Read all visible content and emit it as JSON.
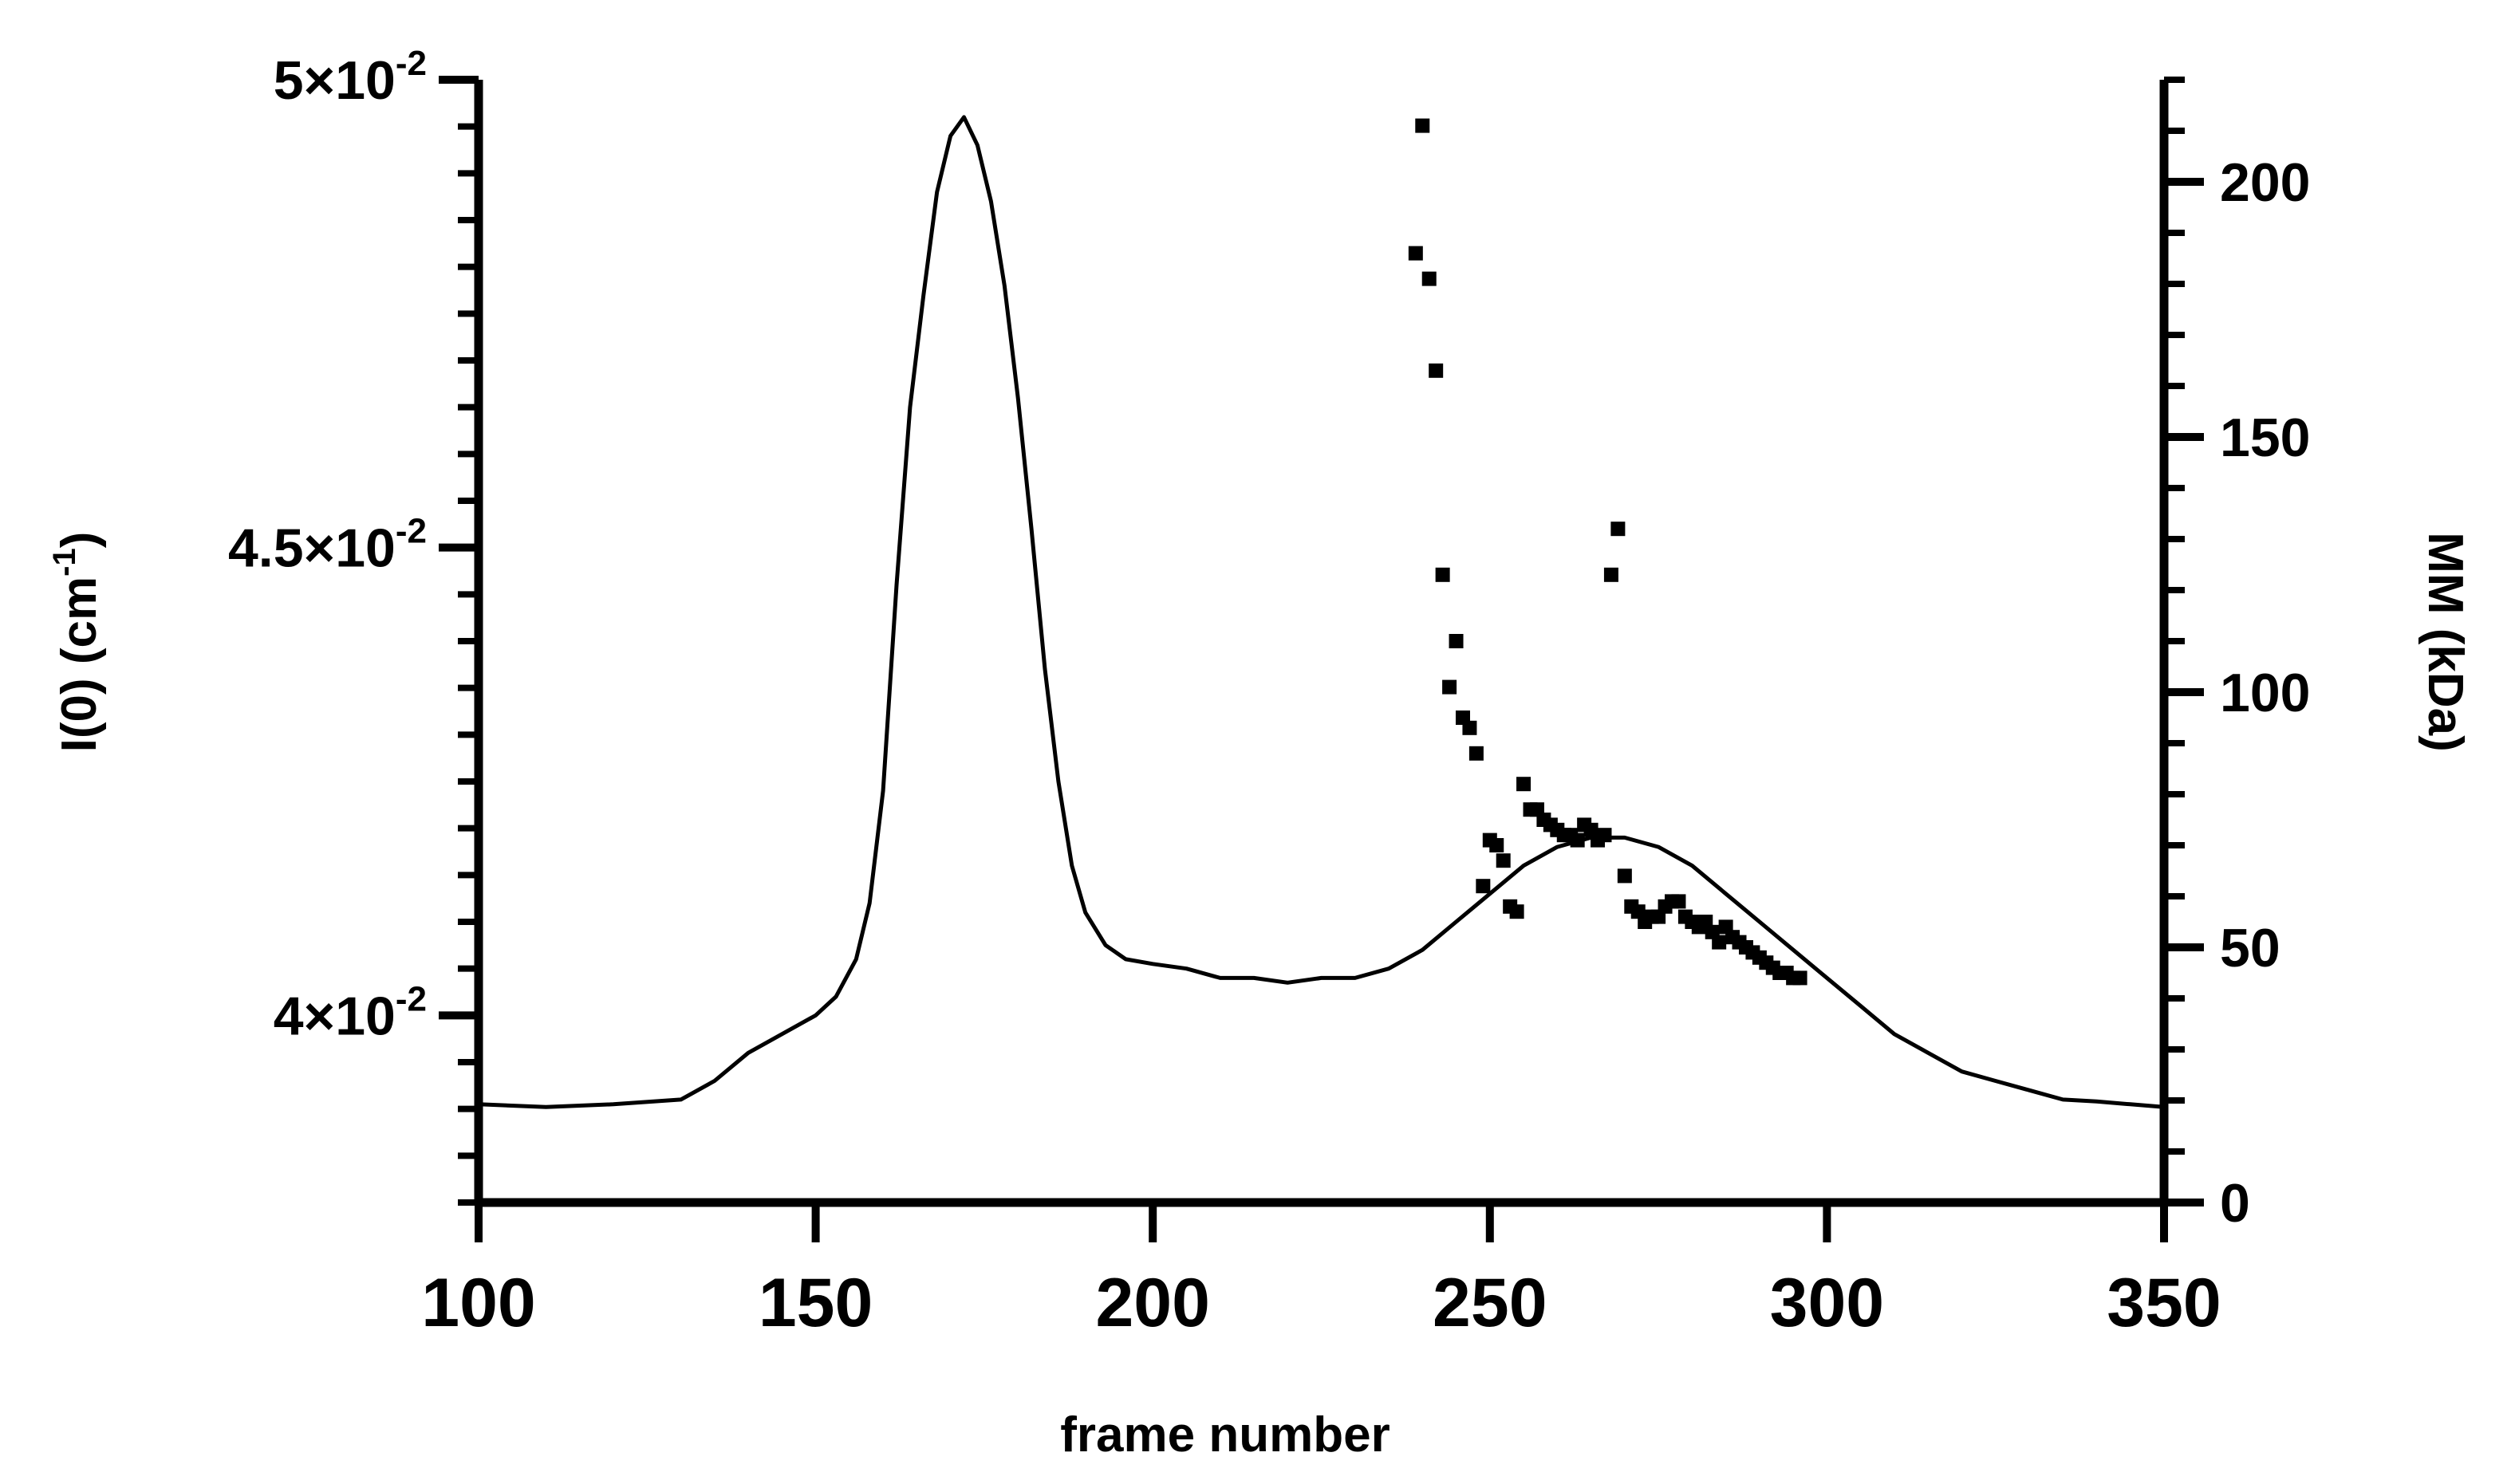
{
  "chart_data": {
    "type": "line",
    "title": "",
    "xlabel": "frame number",
    "ylabel_left": "I(0) (cm",
    "ylabel_left_exp": "-1",
    "ylabel_left_close": ")",
    "ylabel_right": "MM (kDa)",
    "xlim": [
      100,
      350
    ],
    "ylim_left": [
      0.038,
      0.05
    ],
    "ylim_right": [
      0,
      220
    ],
    "x_ticks": [
      "100",
      "150",
      "200",
      "250",
      "300",
      "350"
    ],
    "x_tick_values": [
      100,
      150,
      200,
      250,
      300,
      350
    ],
    "y_left_ticks": [
      {
        "value": 0.05,
        "mantissa": "5×10",
        "exp": "-2"
      },
      {
        "value": 0.045,
        "mantissa": "4.5×10",
        "exp": "-2"
      },
      {
        "value": 0.04,
        "mantissa": "4×10",
        "exp": "-2"
      }
    ],
    "y_right_ticks": [
      "0",
      "50",
      "100",
      "150",
      "200"
    ],
    "y_right_tick_values": [
      0,
      50,
      100,
      150,
      200
    ],
    "grid": false,
    "series": [
      {
        "axis": "left",
        "style": "line",
        "color": "#000000",
        "x": [
          100,
          110,
          120,
          130,
          135,
          140,
          145,
          150,
          153,
          156,
          158,
          160,
          162,
          164,
          166,
          168,
          170,
          172,
          174,
          176,
          178,
          180,
          182,
          184,
          186,
          188,
          190,
          193,
          196,
          200,
          205,
          210,
          215,
          220,
          225,
          230,
          235,
          240,
          245,
          250,
          255,
          260,
          265,
          270,
          275,
          280,
          285,
          290,
          295,
          300,
          305,
          310,
          315,
          320,
          325,
          330,
          335,
          340,
          345,
          350
        ],
        "y": [
          0.03905,
          0.03902,
          0.03905,
          0.0391,
          0.0393,
          0.0396,
          0.0398,
          0.04,
          0.0402,
          0.0406,
          0.0412,
          0.0424,
          0.0446,
          0.0465,
          0.0477,
          0.0488,
          0.0494,
          0.0496,
          0.0493,
          0.0487,
          0.0478,
          0.0466,
          0.0452,
          0.0437,
          0.0425,
          0.0416,
          0.0411,
          0.04075,
          0.0406,
          0.04055,
          0.0405,
          0.0404,
          0.0404,
          0.04035,
          0.0404,
          0.0404,
          0.0405,
          0.0407,
          0.041,
          0.0413,
          0.0416,
          0.0418,
          0.0419,
          0.0419,
          0.0418,
          0.0416,
          0.0413,
          0.041,
          0.0407,
          0.0404,
          0.0401,
          0.0398,
          0.0396,
          0.0394,
          0.0393,
          0.0392,
          0.0391,
          0.03908,
          0.03905,
          0.03902
        ]
      },
      {
        "axis": "right",
        "style": "scatter",
        "color": "#000000",
        "x": [
          239,
          240,
          241,
          242,
          243,
          244,
          245,
          246,
          247,
          248,
          249,
          250,
          251,
          252,
          253,
          254,
          255,
          256,
          257,
          258,
          259,
          260,
          261,
          262,
          263,
          264,
          265,
          266,
          267,
          268,
          269,
          270,
          271,
          272,
          273,
          274,
          275,
          276,
          277,
          278,
          279,
          280,
          281,
          282,
          283,
          284,
          285,
          286,
          287,
          288,
          289,
          290,
          291,
          292,
          293,
          294,
          295,
          296
        ],
        "y": [
          186,
          211,
          181,
          163,
          123,
          101,
          110,
          95,
          93,
          88,
          62,
          71,
          70,
          67,
          58,
          57,
          82,
          77,
          77,
          75,
          74,
          73,
          72,
          72,
          71,
          74,
          73,
          71,
          72,
          123,
          132,
          64,
          58,
          57,
          55,
          56,
          56,
          58,
          59,
          59,
          56,
          55,
          54,
          55,
          53,
          51,
          54,
          52,
          51,
          50,
          49,
          48,
          47,
          46,
          45,
          45,
          44,
          44
        ]
      }
    ]
  }
}
